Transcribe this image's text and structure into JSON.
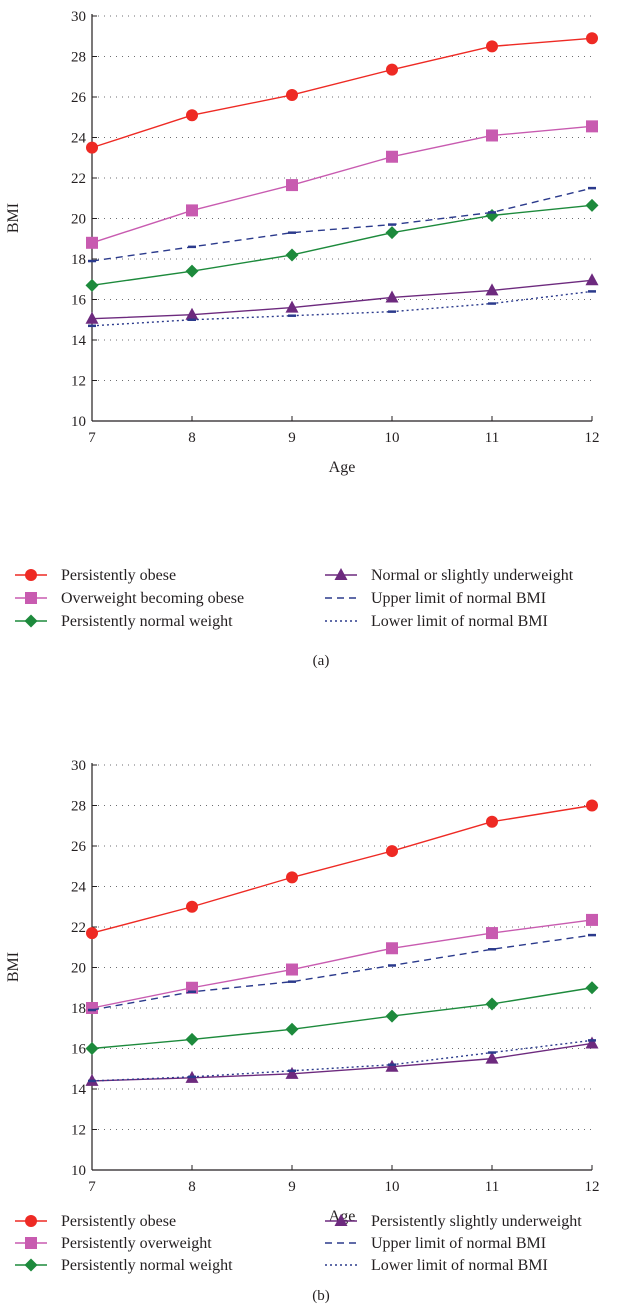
{
  "chart_data": [
    {
      "type": "line",
      "panel_label": "(a)",
      "xlabel": "Age",
      "ylabel": "BMI",
      "x": [
        7,
        8,
        9,
        10,
        11,
        12
      ],
      "xlim": [
        7,
        12
      ],
      "ylim": [
        10,
        30
      ],
      "yticks": [
        10,
        12,
        14,
        16,
        18,
        20,
        22,
        24,
        26,
        28,
        30
      ],
      "grid": "dotted horizontal",
      "legend_position": "bottom",
      "series": [
        {
          "name": "Persistently obese",
          "values": [
            23.5,
            25.1,
            26.1,
            27.35,
            28.5,
            28.9
          ],
          "color": "#ee2a24",
          "marker": "circle",
          "dash": "solid"
        },
        {
          "name": "Overweight becoming obese",
          "values": [
            18.8,
            20.4,
            21.65,
            23.05,
            24.1,
            24.55
          ],
          "color": "#c85bb0",
          "marker": "square",
          "dash": "solid"
        },
        {
          "name": "Persistently normal weight",
          "values": [
            16.7,
            17.4,
            18.2,
            19.3,
            20.15,
            20.65
          ],
          "color": "#1d8a3c",
          "marker": "diamond",
          "dash": "solid"
        },
        {
          "name": "Normal or slightly underweight",
          "values": [
            15.05,
            15.25,
            15.6,
            16.1,
            16.45,
            16.95
          ],
          "color": "#6d2a7e",
          "marker": "triangle",
          "dash": "solid"
        },
        {
          "name": "Upper limit of normal BMI",
          "values": [
            17.9,
            18.6,
            19.3,
            19.7,
            20.3,
            21.5
          ],
          "color": "#2b3a8c",
          "marker": "none",
          "dash": "dashed"
        },
        {
          "name": "Lower limit of normal BMI",
          "values": [
            14.7,
            15.0,
            15.2,
            15.4,
            15.8,
            16.4
          ],
          "color": "#2b3a8c",
          "marker": "none",
          "dash": "dotted"
        }
      ]
    },
    {
      "type": "line",
      "panel_label": "(b)",
      "xlabel": "Age",
      "ylabel": "BMI",
      "x": [
        7,
        8,
        9,
        10,
        11,
        12
      ],
      "xlim": [
        7,
        12
      ],
      "ylim": [
        10,
        30
      ],
      "yticks": [
        10,
        12,
        14,
        16,
        18,
        20,
        22,
        24,
        26,
        28,
        30
      ],
      "grid": "dotted horizontal",
      "legend_position": "bottom",
      "series": [
        {
          "name": "Persistently obese",
          "values": [
            21.7,
            23.0,
            24.45,
            25.75,
            27.2,
            28.0
          ],
          "color": "#ee2a24",
          "marker": "circle",
          "dash": "solid"
        },
        {
          "name": "Persistently overweight",
          "values": [
            18.0,
            19.0,
            19.9,
            20.95,
            21.7,
            22.35
          ],
          "color": "#c85bb0",
          "marker": "square",
          "dash": "solid"
        },
        {
          "name": "Persistently normal weight",
          "values": [
            16.0,
            16.45,
            16.95,
            17.6,
            18.2,
            19.0
          ],
          "color": "#1d8a3c",
          "marker": "diamond",
          "dash": "solid"
        },
        {
          "name": "Persistently slightly underweight",
          "values": [
            14.4,
            14.55,
            14.75,
            15.1,
            15.5,
            16.25
          ],
          "color": "#6d2a7e",
          "marker": "triangle",
          "dash": "solid"
        },
        {
          "name": "Upper limit of normal BMI",
          "values": [
            17.9,
            18.8,
            19.3,
            20.1,
            20.9,
            21.6
          ],
          "color": "#2b3a8c",
          "marker": "none",
          "dash": "dashed"
        },
        {
          "name": "Lower limit of normal BMI",
          "values": [
            14.4,
            14.6,
            14.9,
            15.2,
            15.8,
            16.4
          ],
          "color": "#2b3a8c",
          "marker": "none",
          "dash": "dotted"
        }
      ]
    }
  ]
}
